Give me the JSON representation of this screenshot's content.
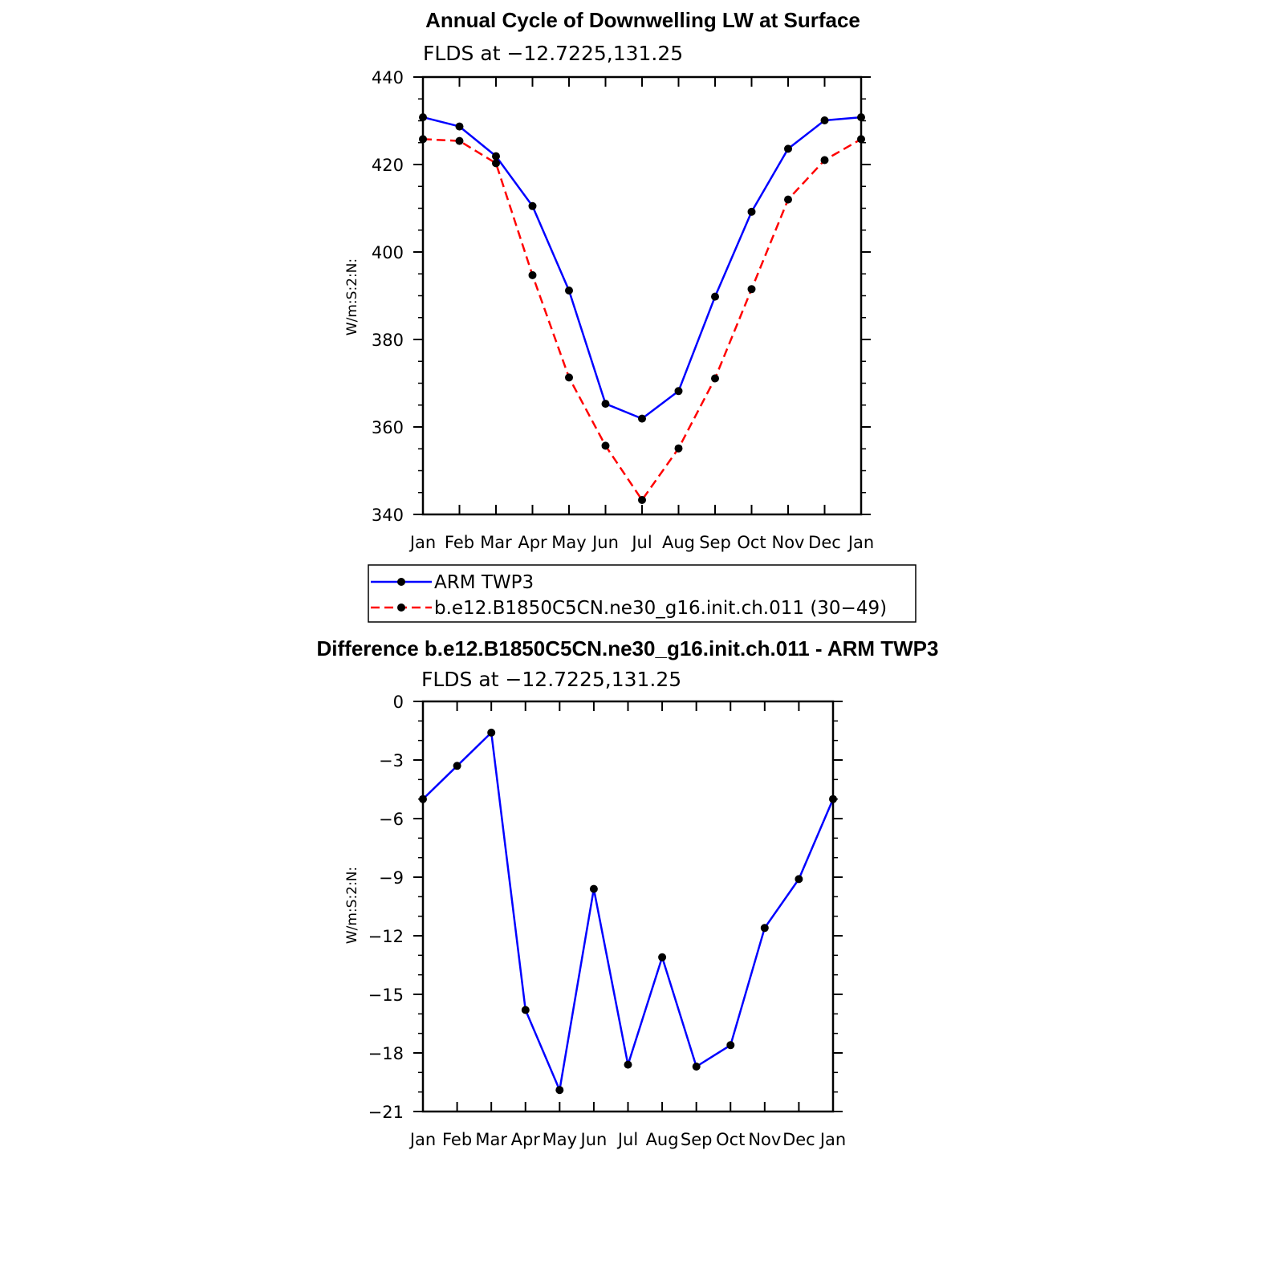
{
  "chart_data": [
    {
      "type": "line",
      "title": "Annual Cycle of Downwelling LW at Surface",
      "subtitle": "FLDS at −12.7225,131.25",
      "ylabel": "W/m:S:2:N:",
      "categories": [
        "Jan",
        "Feb",
        "Mar",
        "Apr",
        "May",
        "Jun",
        "Jul",
        "Aug",
        "Sep",
        "Oct",
        "Nov",
        "Dec",
        "Jan"
      ],
      "yticks": [
        "340",
        "360",
        "380",
        "400",
        "420",
        "440"
      ],
      "ylim": [
        340,
        440
      ],
      "series": [
        {
          "name": "ARM TWP3",
          "color": "#0000ff",
          "dash": "solid",
          "values": [
            430.8,
            428.7,
            421.9,
            410.5,
            391.2,
            365.3,
            361.9,
            368.2,
            389.8,
            409.2,
            423.6,
            430.1,
            430.8
          ]
        },
        {
          "name": "b.e12.B1850C5CN.ne30_g16.init.ch.011 (30−49)",
          "color": "#ff0000",
          "dash": "dashed",
          "values": [
            425.8,
            425.4,
            420.3,
            394.7,
            371.3,
            355.7,
            343.3,
            355.1,
            371.1,
            391.5,
            412.0,
            421.0,
            425.8
          ]
        }
      ],
      "legend": "below"
    },
    {
      "type": "line",
      "title": "Difference b.e12.B1850C5CN.ne30_g16.init.ch.011 - ARM TWP3",
      "subtitle": "FLDS at −12.7225,131.25",
      "ylabel": "W/m:S:2:N:",
      "categories": [
        "Jan",
        "Feb",
        "Mar",
        "Apr",
        "May",
        "Jun",
        "Jul",
        "Aug",
        "Sep",
        "Oct",
        "Nov",
        "Dec",
        "Jan"
      ],
      "yticks": [
        "−21",
        "−18",
        "−15",
        "−12",
        "−9",
        "−6",
        "−3",
        "0"
      ],
      "ylim": [
        -21,
        0
      ],
      "series": [
        {
          "color": "#0000ff",
          "dash": "solid",
          "values": [
            -5.0,
            -3.3,
            -1.6,
            -15.8,
            -19.9,
            -9.6,
            -18.6,
            -13.1,
            -18.7,
            -17.6,
            -11.6,
            -9.1,
            -5.0
          ]
        }
      ]
    }
  ]
}
